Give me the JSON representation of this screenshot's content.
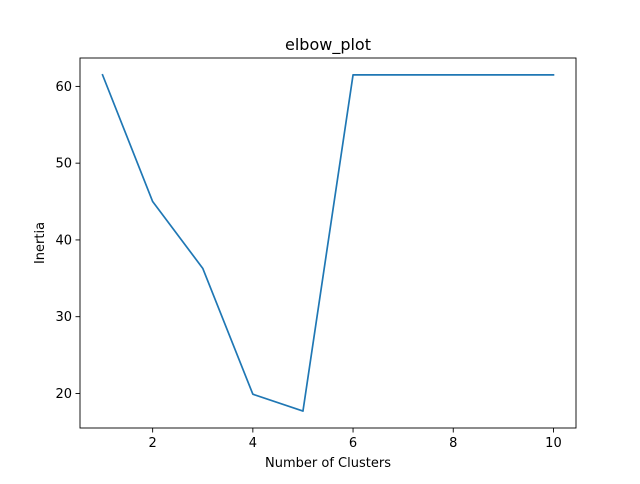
{
  "chart_data": {
    "type": "line",
    "title": "elbow_plot",
    "xlabel": "Number of Clusters",
    "ylabel": "Inertia",
    "x": [
      1,
      2,
      3,
      4,
      5,
      6,
      7,
      8,
      9,
      10
    ],
    "series": [
      {
        "values": [
          61.5,
          45.0,
          36.3,
          19.9,
          17.7,
          61.5,
          61.5,
          61.5,
          61.5,
          61.5
        ],
        "color": "#1f77b4"
      }
    ],
    "xlim": [
      0.55,
      10.45
    ],
    "ylim": [
      15.5,
      63.7
    ],
    "xticks": [
      2,
      4,
      6,
      8,
      10
    ],
    "yticks": [
      20,
      30,
      40,
      50,
      60
    ],
    "grid": false,
    "legend": "none"
  }
}
